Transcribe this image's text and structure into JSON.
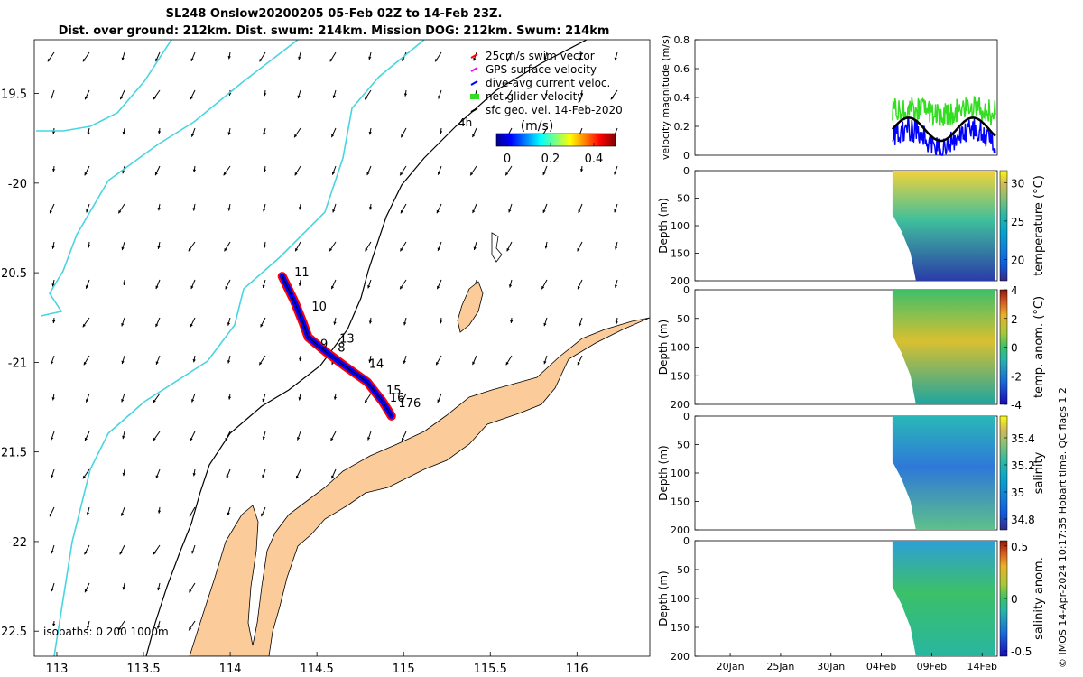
{
  "title_line1": "SL248 Onslow20200205 05-Feb 02Z to 14-Feb 23Z.",
  "title_line2": "Dist. over ground: 212km. Dist. swum: 214km. Mission DOG: 212km. Swum: 214km",
  "credit": "© IMOS 14-Apr-2024 10:17:35 Hobart time. QC flags 1  2",
  "colors": {
    "land": "#fbcb9a",
    "coast_inner": "#48d5e0",
    "track_red": "#ff0000",
    "track_blue": "#0000ff",
    "glider_green": "#33dd22",
    "arrow": "#000000"
  },
  "chart_data": [
    {
      "type": "map",
      "xlim": [
        112.87,
        116.42
      ],
      "ylim": [
        -22.64,
        -19.2
      ],
      "x_ticks": [
        113,
        113.5,
        114,
        114.5,
        115,
        115.5,
        116
      ],
      "x_tick_labels": [
        "113",
        "113.5",
        "114",
        "114.5",
        "115",
        "115.5",
        "116"
      ],
      "y_ticks": [
        -19.5,
        -20,
        -20.5,
        -21,
        -21.5,
        -22,
        -22.5
      ],
      "y_tick_labels": [
        "19.5",
        "-20",
        "20.5",
        "-21",
        "21.5",
        "-22",
        "22.5"
      ],
      "legend": {
        "placement": "top-right",
        "entries": [
          {
            "label": "25cm/s swim vector",
            "color": "#ff0000"
          },
          {
            "label": "GPS surface velocity",
            "color": "#ff00ff"
          },
          {
            "label": "dive-avg current veloc.",
            "color": "#0000ff"
          },
          {
            "label": "net glider velocity",
            "color": "#33dd22"
          },
          {
            "label": "sfc geo. vel. 14-Feb-2020",
            "color": "#000000"
          }
        ]
      },
      "colorbar": {
        "title": "(m/s)",
        "ticks": [
          0,
          0.2,
          0.4
        ],
        "tick_labels": [
          "0",
          "0.2",
          "0.4"
        ],
        "range": [
          -0.05,
          0.5
        ]
      },
      "isobath_note": "isobaths: 0   200  1000m",
      "isobath_label": "4h",
      "glider_track": [
        [
          114.3,
          -20.52
        ],
        [
          114.37,
          -20.66
        ],
        [
          114.42,
          -20.78
        ],
        [
          114.45,
          -20.86
        ],
        [
          114.55,
          -20.94
        ],
        [
          114.66,
          -21.02
        ],
        [
          114.79,
          -21.11
        ],
        [
          114.88,
          -21.22
        ],
        [
          114.93,
          -21.3
        ]
      ],
      "track_labels": [
        {
          "text": "11",
          "lon": 114.37,
          "lat": -20.52
        },
        {
          "text": "10",
          "lon": 114.47,
          "lat": -20.71
        },
        {
          "text": "13",
          "lon": 114.63,
          "lat": -20.89
        },
        {
          "text": "9",
          "lon": 114.52,
          "lat": -20.92
        },
        {
          "text": "8",
          "lon": 114.62,
          "lat": -20.94
        },
        {
          "text": "14",
          "lon": 114.8,
          "lat": -21.03
        },
        {
          "text": "15",
          "lon": 114.9,
          "lat": -21.18
        },
        {
          "text": "16",
          "lon": 114.92,
          "lat": -21.22
        },
        {
          "text": "176",
          "lon": 114.97,
          "lat": -21.25
        }
      ]
    },
    {
      "type": "line",
      "ylabel": "velocity magnitude (m/s)",
      "ylim": [
        0,
        0.8
      ],
      "y_ticks": [
        0,
        0.2,
        0.4,
        0.6,
        0.8
      ],
      "y_tick_labels": [
        "0",
        "0.2",
        "0.4",
        "0.6",
        "0.8"
      ],
      "x_range_days": [
        16.5,
        46.5
      ],
      "series_colors": [
        "#33dd22",
        "#0000ff",
        "#000000"
      ]
    },
    {
      "type": "heatmap",
      "ylabel": "Depth (m)",
      "colorbar_label": "temperature (°C)",
      "ylim": [
        200,
        0
      ],
      "y_ticks": [
        0,
        50,
        100,
        150,
        200
      ],
      "y_tick_labels": [
        "0",
        "50",
        "100",
        "150",
        "200"
      ],
      "colorbar_ticks": [
        20,
        25,
        30
      ],
      "colorbar_tick_labels": [
        "20",
        "25",
        "30"
      ],
      "colorbar_range": [
        17.2,
        31.6
      ]
    },
    {
      "type": "heatmap",
      "ylabel": "Depth (m)",
      "colorbar_label": "temp. anom. (°C)",
      "ylim": [
        200,
        0
      ],
      "y_ticks": [
        0,
        50,
        100,
        150,
        200
      ],
      "y_tick_labels": [
        "0",
        "50",
        "100",
        "150",
        "200"
      ],
      "colorbar_ticks": [
        4,
        2,
        0,
        -2,
        -4
      ],
      "colorbar_tick_labels": [
        "4",
        "2",
        "0",
        "-2",
        "-4"
      ],
      "colorbar_range": [
        -4,
        4
      ]
    },
    {
      "type": "heatmap",
      "ylabel": "Depth (m)",
      "colorbar_label": "salinity",
      "ylim": [
        200,
        0
      ],
      "y_ticks": [
        0,
        50,
        100,
        150,
        200
      ],
      "y_tick_labels": [
        "0",
        "50",
        "100",
        "150",
        "200"
      ],
      "colorbar_ticks": [
        35.4,
        35.2,
        35,
        34.8
      ],
      "colorbar_tick_labels": [
        "35.4",
        "35.2",
        "35",
        "34.8"
      ],
      "colorbar_range": [
        34.72,
        35.56
      ]
    },
    {
      "type": "heatmap",
      "ylabel": "Depth (m)",
      "colorbar_label": "salinity anom.",
      "ylim": [
        200,
        0
      ],
      "y_ticks": [
        0,
        50,
        100,
        150,
        200
      ],
      "y_tick_labels": [
        "0",
        "50",
        "100",
        "150",
        "200"
      ],
      "colorbar_ticks": [
        0.5,
        0,
        -0.5
      ],
      "colorbar_tick_labels": [
        "0.5",
        "0",
        "-0.5"
      ],
      "colorbar_range": [
        -0.55,
        0.55
      ],
      "x_ticks": [
        20,
        25,
        30,
        35,
        40,
        45
      ],
      "x_tick_labels": [
        "20Jan",
        "25Jan",
        "30Jan",
        "04Feb",
        "09Feb",
        "14Feb"
      ],
      "x_range_days": [
        16.5,
        46.5
      ],
      "data_start_day": 36.1
    }
  ]
}
